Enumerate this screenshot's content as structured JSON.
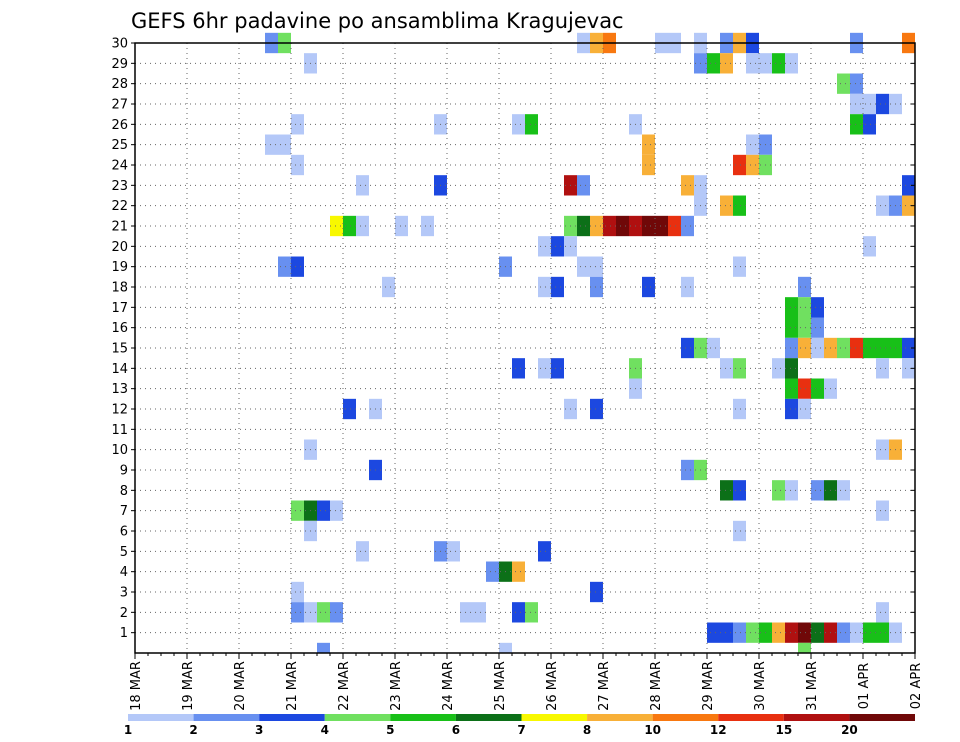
{
  "chart_data": {
    "type": "heatmap",
    "title": "GEFS 6hr padavine po ansamblima Kragujevac",
    "xlabel": "",
    "ylabel": "",
    "x_ticks": [
      "18 MAR",
      "19 MAR",
      "20 MAR",
      "21 MAR",
      "22 MAR",
      "23 MAR",
      "24 MAR",
      "25 MAR",
      "26 MAR",
      "27 MAR",
      "28 MAR",
      "29 MAR",
      "30 MAR",
      "31 MAR",
      "01 APR",
      "02 APR"
    ],
    "x_unit": "6-hour step (4 per day)",
    "xlim": [
      0,
      60
    ],
    "y_ticks": [
      1,
      2,
      3,
      4,
      5,
      6,
      7,
      8,
      9,
      10,
      11,
      12,
      13,
      14,
      15,
      16,
      17,
      18,
      19,
      20,
      21,
      22,
      23,
      24,
      25,
      26,
      27,
      28,
      29,
      30
    ],
    "ylim": [
      0,
      30
    ],
    "grid": true,
    "color_levels": [
      {
        "color": "#b4c8f8",
        "label": "1"
      },
      {
        "color": "#6890f0",
        "label": "2"
      },
      {
        "color": "#1c48e0",
        "label": "3"
      },
      {
        "color": "#70e060",
        "label": "4"
      },
      {
        "color": "#18c018",
        "label": "5"
      },
      {
        "color": "#0c7018",
        "label": "6"
      },
      {
        "color": "#f8f800",
        "label": "7"
      },
      {
        "color": "#f8b038",
        "label": "8"
      },
      {
        "color": "#f87810",
        "label": "10"
      },
      {
        "color": "#e83010",
        "label": "12"
      },
      {
        "color": "#b01010",
        "label": "15"
      },
      {
        "color": "#700808",
        "label": "20"
      }
    ],
    "cells": [
      {
        "m": 30,
        "c": [
          [
            10,
            1
          ],
          [
            11,
            3
          ],
          [
            34,
            0
          ],
          [
            35,
            7
          ],
          [
            36,
            8
          ],
          [
            40,
            0
          ],
          [
            41,
            0
          ],
          [
            43,
            0
          ],
          [
            45,
            1
          ],
          [
            46,
            7
          ],
          [
            47,
            2
          ],
          [
            55,
            1
          ],
          [
            59,
            8
          ]
        ]
      },
      {
        "m": 29,
        "c": [
          [
            13,
            0
          ],
          [
            43,
            1
          ],
          [
            44,
            4
          ],
          [
            45,
            7
          ],
          [
            47,
            0
          ],
          [
            48,
            0
          ],
          [
            49,
            4
          ],
          [
            50,
            0
          ]
        ]
      },
      {
        "m": 28,
        "c": [
          [
            54,
            3
          ],
          [
            55,
            1
          ]
        ]
      },
      {
        "m": 27,
        "c": [
          [
            55,
            0
          ],
          [
            56,
            0
          ],
          [
            57,
            2
          ],
          [
            58,
            0
          ]
        ]
      },
      {
        "m": 26,
        "c": [
          [
            12,
            0
          ],
          [
            23,
            0
          ],
          [
            29,
            0
          ],
          [
            30,
            4
          ],
          [
            38,
            0
          ],
          [
            55,
            4
          ],
          [
            56,
            2
          ]
        ]
      },
      {
        "m": 25,
        "c": [
          [
            10,
            0
          ],
          [
            11,
            0
          ],
          [
            39,
            7
          ],
          [
            47,
            0
          ],
          [
            48,
            1
          ]
        ]
      },
      {
        "m": 24,
        "c": [
          [
            12,
            0
          ],
          [
            39,
            7
          ],
          [
            46,
            9
          ],
          [
            47,
            7
          ],
          [
            48,
            3
          ]
        ]
      },
      {
        "m": 23,
        "c": [
          [
            17,
            0
          ],
          [
            23,
            2
          ],
          [
            33,
            10
          ],
          [
            34,
            1
          ],
          [
            42,
            7
          ],
          [
            43,
            0
          ],
          [
            59,
            2
          ]
        ]
      },
      {
        "m": 22,
        "c": [
          [
            43,
            0
          ],
          [
            45,
            7
          ],
          [
            46,
            4
          ],
          [
            57,
            0
          ],
          [
            58,
            1
          ],
          [
            59,
            7
          ]
        ]
      },
      {
        "m": 21,
        "c": [
          [
            15,
            6
          ],
          [
            16,
            4
          ],
          [
            17,
            0
          ],
          [
            20,
            0
          ],
          [
            22,
            0
          ],
          [
            33,
            3
          ],
          [
            34,
            5
          ],
          [
            35,
            7
          ],
          [
            36,
            10
          ],
          [
            37,
            11
          ],
          [
            38,
            10
          ],
          [
            39,
            11
          ],
          [
            40,
            11
          ],
          [
            41,
            9
          ],
          [
            42,
            1
          ]
        ]
      },
      {
        "m": 20,
        "c": [
          [
            31,
            0
          ],
          [
            32,
            2
          ],
          [
            33,
            0
          ],
          [
            56,
            0
          ]
        ]
      },
      {
        "m": 19,
        "c": [
          [
            11,
            1
          ],
          [
            12,
            2
          ],
          [
            28,
            1
          ],
          [
            34,
            0
          ],
          [
            35,
            0
          ],
          [
            46,
            0
          ]
        ]
      },
      {
        "m": 18,
        "c": [
          [
            19,
            0
          ],
          [
            31,
            0
          ],
          [
            32,
            2
          ],
          [
            35,
            1
          ],
          [
            39,
            2
          ],
          [
            42,
            0
          ],
          [
            51,
            1
          ]
        ]
      },
      {
        "m": 17,
        "c": [
          [
            50,
            4
          ],
          [
            51,
            3
          ],
          [
            52,
            2
          ]
        ]
      },
      {
        "m": 16,
        "c": [
          [
            50,
            4
          ],
          [
            51,
            3
          ],
          [
            52,
            1
          ]
        ]
      },
      {
        "m": 15,
        "c": [
          [
            42,
            2
          ],
          [
            43,
            3
          ],
          [
            44,
            0
          ],
          [
            50,
            1
          ],
          [
            51,
            7
          ],
          [
            52,
            0
          ],
          [
            53,
            7
          ],
          [
            54,
            3
          ],
          [
            55,
            9
          ],
          [
            56,
            4
          ],
          [
            57,
            4
          ],
          [
            58,
            4
          ],
          [
            59,
            2
          ]
        ]
      },
      {
        "m": 14,
        "c": [
          [
            29,
            2
          ],
          [
            31,
            0
          ],
          [
            32,
            2
          ],
          [
            38,
            3
          ],
          [
            45,
            0
          ],
          [
            46,
            3
          ],
          [
            49,
            0
          ],
          [
            50,
            5
          ],
          [
            57,
            0
          ],
          [
            59,
            0
          ]
        ]
      },
      {
        "m": 13,
        "c": [
          [
            38,
            0
          ],
          [
            50,
            4
          ],
          [
            51,
            9
          ],
          [
            52,
            4
          ],
          [
            53,
            0
          ]
        ]
      },
      {
        "m": 12,
        "c": [
          [
            16,
            2
          ],
          [
            18,
            0
          ],
          [
            33,
            0
          ],
          [
            35,
            2
          ],
          [
            46,
            0
          ],
          [
            50,
            2
          ],
          [
            51,
            0
          ]
        ]
      },
      {
        "m": 11,
        "c": []
      },
      {
        "m": 10,
        "c": [
          [
            13,
            0
          ],
          [
            57,
            0
          ],
          [
            58,
            7
          ]
        ]
      },
      {
        "m": 9,
        "c": [
          [
            18,
            2
          ],
          [
            42,
            1
          ],
          [
            43,
            3
          ]
        ]
      },
      {
        "m": 8,
        "c": [
          [
            45,
            5
          ],
          [
            46,
            2
          ],
          [
            49,
            3
          ],
          [
            50,
            0
          ],
          [
            52,
            1
          ],
          [
            53,
            5
          ],
          [
            54,
            0
          ]
        ]
      },
      {
        "m": 7,
        "c": [
          [
            12,
            3
          ],
          [
            13,
            5
          ],
          [
            14,
            2
          ],
          [
            15,
            0
          ],
          [
            57,
            0
          ]
        ]
      },
      {
        "m": 6,
        "c": [
          [
            13,
            0
          ],
          [
            46,
            0
          ]
        ]
      },
      {
        "m": 5,
        "c": [
          [
            17,
            0
          ],
          [
            23,
            1
          ],
          [
            24,
            0
          ],
          [
            31,
            2
          ]
        ]
      },
      {
        "m": 4,
        "c": [
          [
            27,
            1
          ],
          [
            28,
            5
          ],
          [
            29,
            7
          ]
        ]
      },
      {
        "m": 3,
        "c": [
          [
            12,
            0
          ],
          [
            35,
            2
          ]
        ]
      },
      {
        "m": 2,
        "c": [
          [
            12,
            1
          ],
          [
            13,
            0
          ],
          [
            14,
            3
          ],
          [
            15,
            1
          ],
          [
            25,
            0
          ],
          [
            26,
            0
          ],
          [
            29,
            2
          ],
          [
            30,
            3
          ],
          [
            57,
            0
          ]
        ]
      },
      {
        "m": 1,
        "c": [
          [
            44,
            2
          ],
          [
            45,
            2
          ],
          [
            46,
            1
          ],
          [
            47,
            3
          ],
          [
            48,
            4
          ],
          [
            49,
            7
          ],
          [
            50,
            10
          ],
          [
            51,
            11
          ],
          [
            52,
            5
          ],
          [
            53,
            10
          ],
          [
            54,
            1
          ],
          [
            55,
            0
          ],
          [
            56,
            4
          ],
          [
            57,
            4
          ],
          [
            58,
            0
          ]
        ]
      },
      {
        "m": 0,
        "c": [
          [
            14,
            1
          ],
          [
            28,
            0
          ],
          [
            51,
            3
          ]
        ]
      }
    ]
  }
}
